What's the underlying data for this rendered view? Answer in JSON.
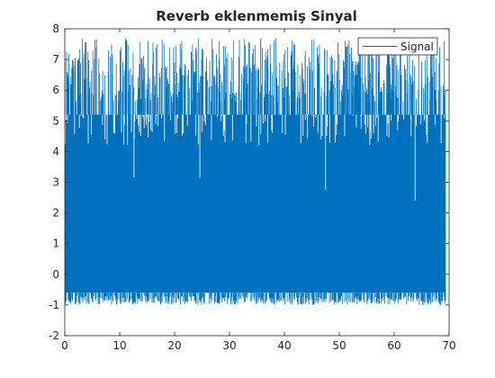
{
  "chart_data": {
    "type": "line",
    "title": "Reverb eklenmemiş Sinyal",
    "xlabel": "",
    "ylabel": "",
    "xlim": [
      0,
      70
    ],
    "ylim": [
      -2,
      8
    ],
    "x_ticks": [
      0,
      10,
      20,
      30,
      40,
      50,
      60,
      70
    ],
    "y_ticks": [
      -2,
      -1,
      0,
      1,
      2,
      3,
      4,
      5,
      6,
      7,
      8
    ],
    "x_data_range": [
      0,
      69.4
    ],
    "grid": false,
    "legend": {
      "position": "top-right",
      "entries": [
        "Signal"
      ]
    },
    "series": [
      {
        "name": "Signal",
        "color": "#0072bd",
        "dense_band": [
          -0.6,
          5.2
        ],
        "spike_max": 7.7,
        "spike_min": -1.0,
        "notable_dips": [
          {
            "x": 12.6,
            "y": 3.15
          },
          {
            "x": 24.6,
            "y": 3.15
          },
          {
            "x": 47.5,
            "y": 2.75
          },
          {
            "x": 63.8,
            "y": 2.4
          }
        ]
      }
    ]
  },
  "colors": {
    "series": "#0072bd",
    "axes": "#262626",
    "background": "#ffffff"
  }
}
